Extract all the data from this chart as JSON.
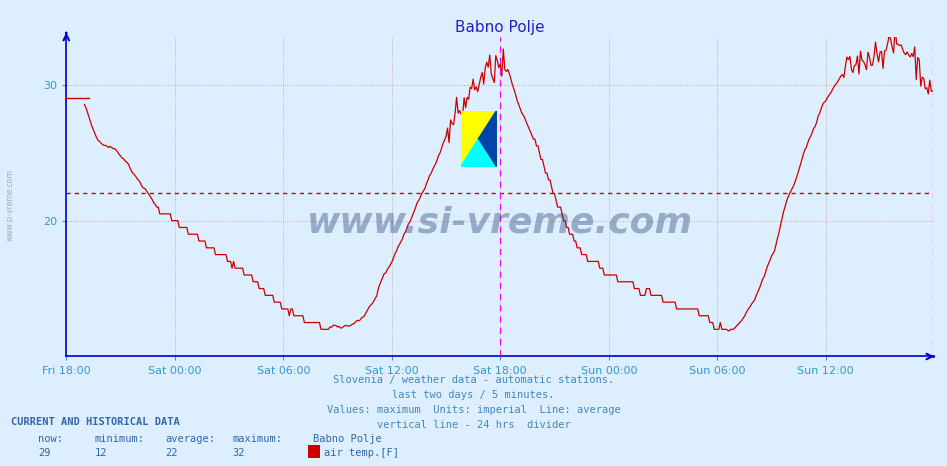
{
  "title": "Babno Polje",
  "title_color": "#2222cc",
  "bg_color": "#ddeeff",
  "plot_bg_color": "#ddeeff",
  "line_color": "#cc0000",
  "avg_line_color": "#cc0000",
  "avg_value": 22,
  "ylim": [
    10,
    33.5
  ],
  "yticks": [
    20,
    30
  ],
  "ytick_color": "#3399cc",
  "xtick_color": "#3399cc",
  "grid_color": "#cc9999",
  "vline_color": "#ff00ff",
  "spine_color": "#0000cc",
  "footer_lines": [
    "Slovenia / weather data - automatic stations.",
    "last two days / 5 minutes.",
    "Values: maximum  Units: imperial  Line: average",
    "vertical line - 24 hrs  divider"
  ],
  "footer_color": "#4488bb",
  "current_label": "CURRENT AND HISTORICAL DATA",
  "stats_headers": [
    "now:",
    "minimum:",
    "average:",
    "maximum:",
    "Babno Polje"
  ],
  "stats_values": [
    "29",
    "12",
    "22",
    "32"
  ],
  "legend_label": "air temp.[F]",
  "legend_color": "#cc0000",
  "watermark": "www.si-vreme.com",
  "watermark_color": "#2a4a7a",
  "side_text": "www.si-vreme.com",
  "xtick_labels": [
    "Fri 18:00",
    "Sat 00:00",
    "Sat 06:00",
    "Sat 12:00",
    "Sat 18:00",
    "Sun 00:00",
    "Sun 06:00",
    "Sun 12:00"
  ],
  "n_points": 576,
  "vline_x_24hr": 288,
  "vline_x_end": 575,
  "keypoints": [
    [
      0,
      -999
    ],
    [
      12,
      29
    ],
    [
      20,
      26
    ],
    [
      36,
      25
    ],
    [
      48,
      23
    ],
    [
      60,
      21
    ],
    [
      72,
      20
    ],
    [
      90,
      18.5
    ],
    [
      108,
      17
    ],
    [
      120,
      16
    ],
    [
      130,
      15
    ],
    [
      140,
      14
    ],
    [
      144,
      13.5
    ],
    [
      155,
      13
    ],
    [
      160,
      12.5
    ],
    [
      170,
      12.2
    ],
    [
      174,
      12
    ],
    [
      185,
      12.2
    ],
    [
      196,
      12.8
    ],
    [
      204,
      14
    ],
    [
      216,
      17
    ],
    [
      228,
      20
    ],
    [
      240,
      23
    ],
    [
      252,
      26
    ],
    [
      260,
      28
    ],
    [
      268,
      29.5
    ],
    [
      276,
      30.5
    ],
    [
      280,
      31
    ],
    [
      284,
      31.2
    ],
    [
      288,
      31.5
    ],
    [
      292,
      31
    ],
    [
      296,
      30
    ],
    [
      300,
      28.5
    ],
    [
      310,
      26
    ],
    [
      320,
      23
    ],
    [
      330,
      20
    ],
    [
      340,
      18
    ],
    [
      350,
      17
    ],
    [
      360,
      16
    ],
    [
      370,
      15.5
    ],
    [
      380,
      15
    ],
    [
      390,
      14.5
    ],
    [
      400,
      14
    ],
    [
      410,
      13.5
    ],
    [
      420,
      13
    ],
    [
      425,
      12.8
    ],
    [
      430,
      12.5
    ],
    [
      432,
      12.2
    ],
    [
      438,
      12
    ],
    [
      444,
      12.2
    ],
    [
      450,
      13
    ],
    [
      460,
      15
    ],
    [
      470,
      18
    ],
    [
      480,
      22
    ],
    [
      490,
      25
    ],
    [
      500,
      28
    ],
    [
      504,
      29
    ],
    [
      510,
      30
    ],
    [
      516,
      31
    ],
    [
      522,
      31.5
    ],
    [
      528,
      32
    ],
    [
      534,
      32.2
    ],
    [
      540,
      32.5
    ],
    [
      546,
      32.8
    ],
    [
      550,
      33
    ],
    [
      554,
      32.8
    ],
    [
      558,
      32.5
    ],
    [
      562,
      32
    ],
    [
      566,
      31.5
    ],
    [
      570,
      30.5
    ],
    [
      574,
      29
    ],
    [
      575,
      29
    ]
  ]
}
